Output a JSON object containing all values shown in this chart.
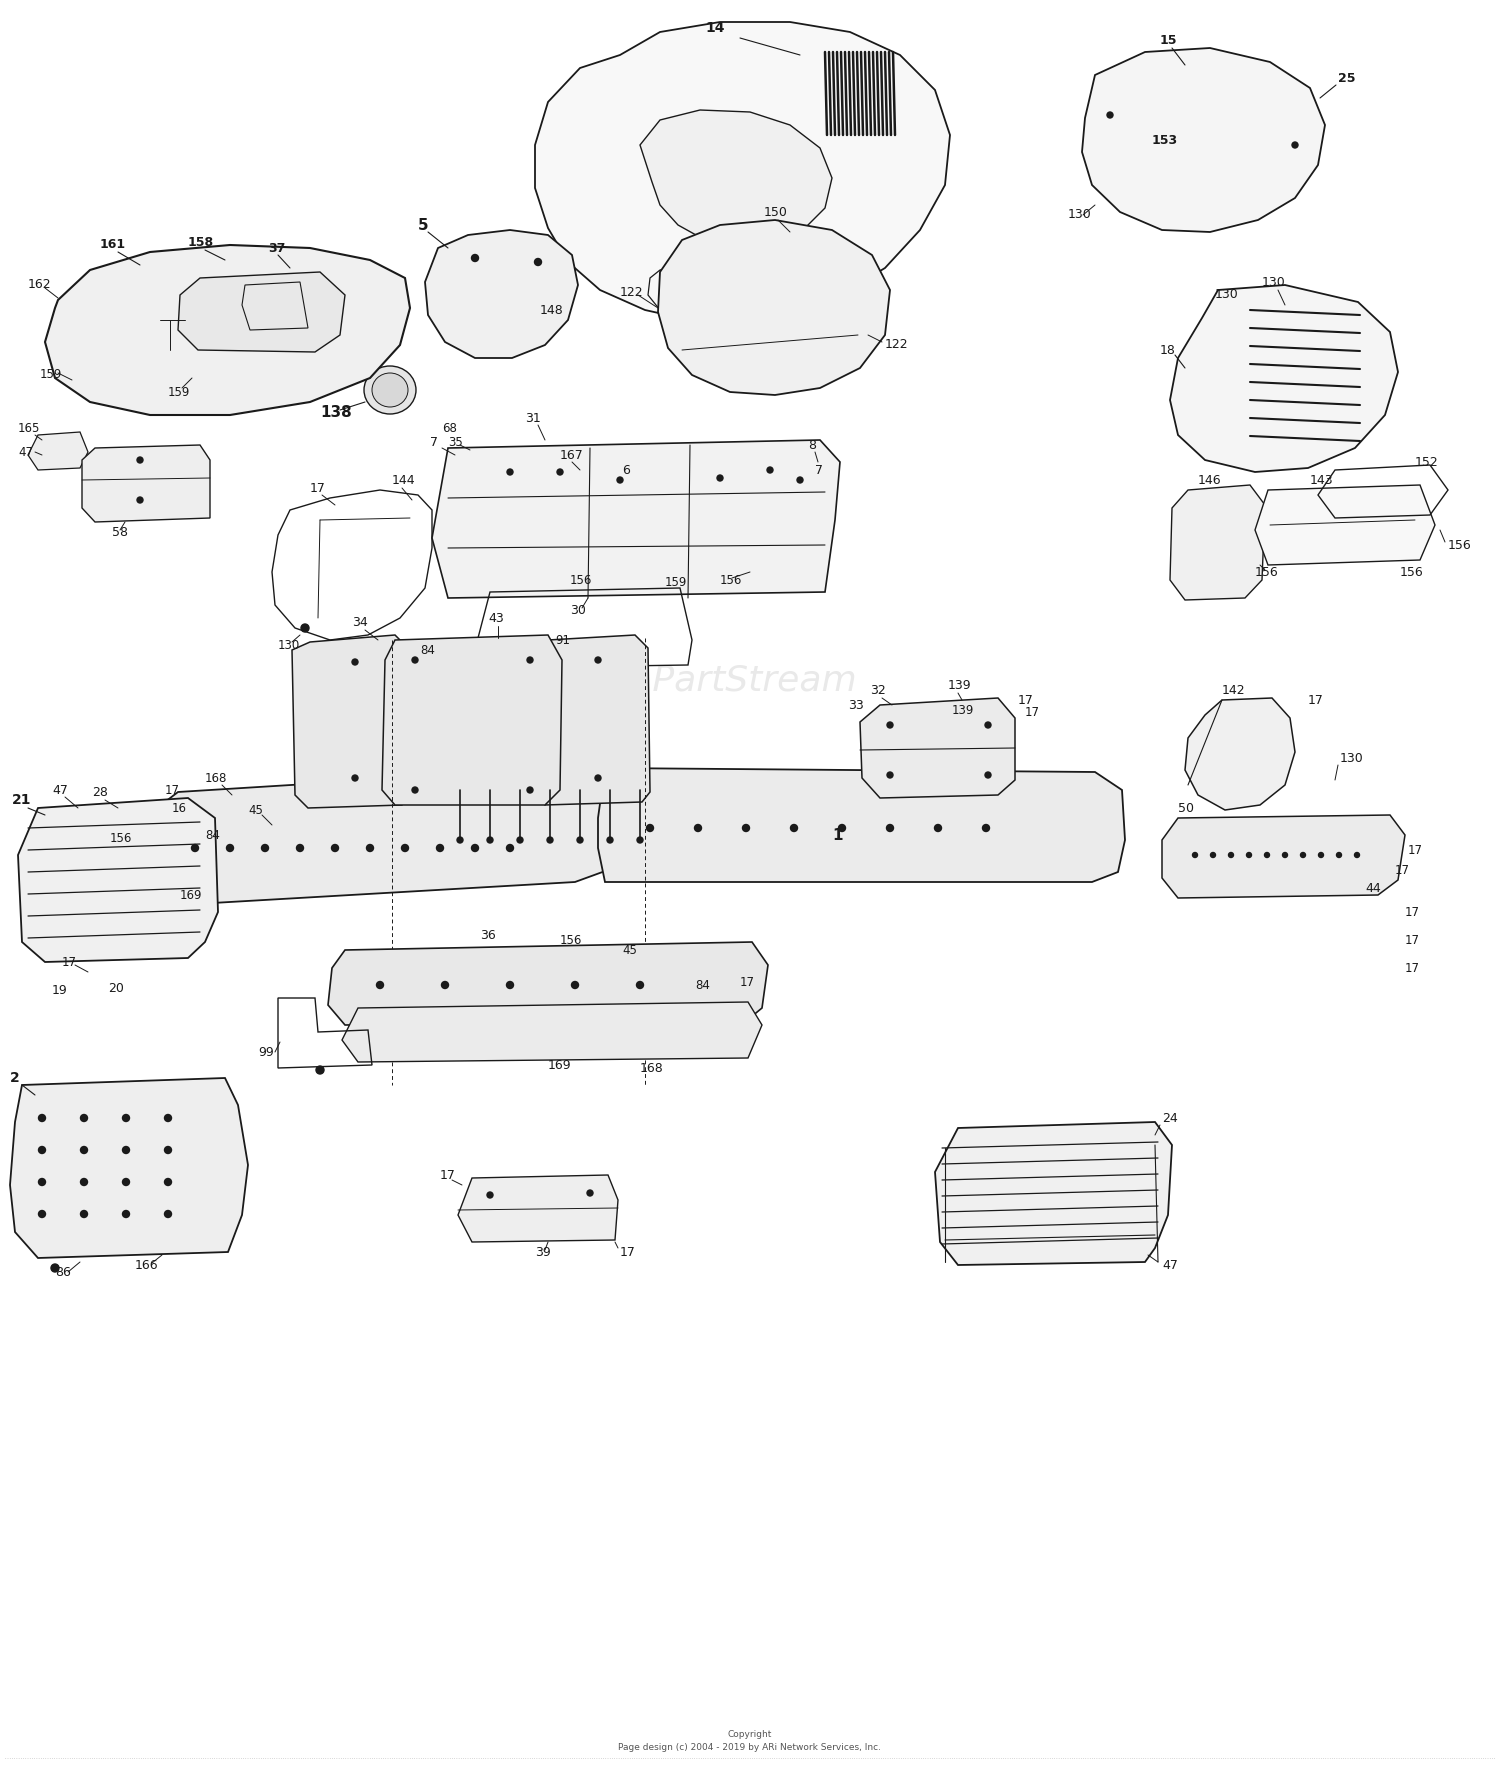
{
  "bg": "#ffffff",
  "lc": "#1a1a1a",
  "tc": "#1a1a1a",
  "wm_color": "#c8c8c8",
  "watermark": "ARi PartStream",
  "copyright": "Copyright\nPage design (c) 2004 - 2019 by ARi Network Services, Inc.",
  "fs": 8.5,
  "fw": 15.0,
  "fh": 17.76,
  "dpi": 100
}
